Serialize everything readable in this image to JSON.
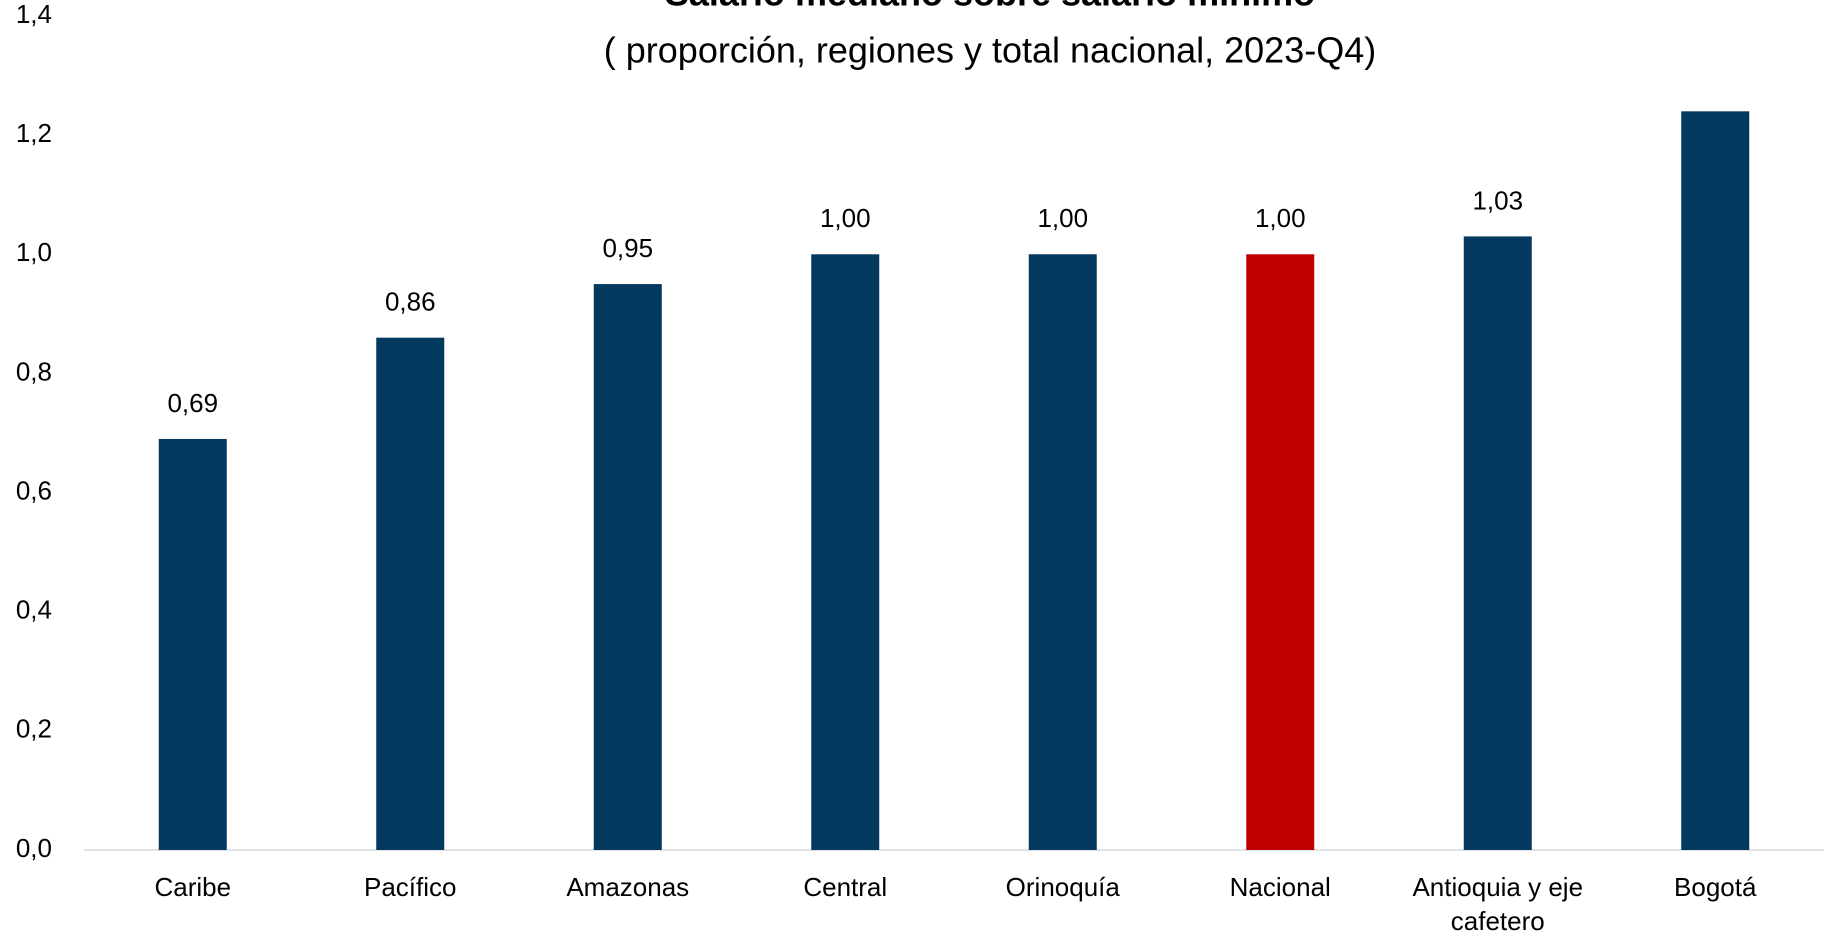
{
  "chart_data": {
    "type": "bar",
    "title": "Salario mediano sobre salario mínimo",
    "subtitle": "( proporción, regiones y total nacional, 2023-Q4)",
    "categories": [
      "Caribe",
      "Pacífico",
      "Amazonas",
      "Central",
      "Orinoquía",
      "Nacional",
      "Antioquia y eje cafetero",
      "Bogotá"
    ],
    "values": [
      0.69,
      0.86,
      0.95,
      1.0,
      1.0,
      1.0,
      1.03,
      1.24
    ],
    "value_labels": [
      "0,69",
      "0,86",
      "0,95",
      "1,00",
      "1,00",
      "1,00",
      "1,03",
      ""
    ],
    "colors": [
      "#03395e",
      "#03395e",
      "#03395e",
      "#03395e",
      "#03395e",
      "#c00000",
      "#03395e",
      "#03395e"
    ],
    "ylim": [
      0,
      1.4
    ],
    "yticks": [
      {
        "value": 0,
        "label": "0,0"
      },
      {
        "value": 0.2,
        "label": "0,2"
      },
      {
        "value": 0.4,
        "label": "0,4"
      },
      {
        "value": 0.6,
        "label": "0,6"
      },
      {
        "value": 0.8,
        "label": "0,8"
      },
      {
        "value": 1.0,
        "label": "1,0"
      },
      {
        "value": 1.2,
        "label": "1,2"
      },
      {
        "value": 1.4,
        "label": "1,4"
      }
    ],
    "grid": false
  }
}
